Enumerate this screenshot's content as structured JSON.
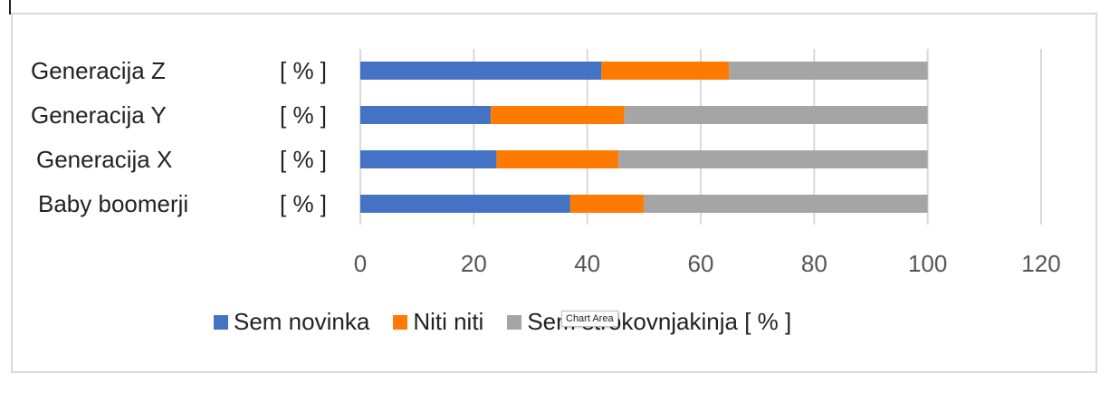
{
  "chart_data": {
    "type": "bar",
    "orientation": "horizontal",
    "stacked": true,
    "categories": [
      "Generacija Z",
      "Generacija Y",
      "Generacija X",
      "Baby boomerji"
    ],
    "unit_label": "[ % ]",
    "series": [
      {
        "name": "Sem novinka",
        "color": "#4472C4",
        "values": [
          42.5,
          23,
          24,
          37
        ]
      },
      {
        "name": "Niti niti",
        "color": "#FF7A00",
        "values": [
          22.5,
          23.5,
          21.5,
          13
        ]
      },
      {
        "name": "Sem strokovnjakinja  [ % ]",
        "color": "#A5A5A5",
        "values": [
          35,
          53.5,
          54.5,
          50
        ]
      }
    ],
    "x_ticks": [
      "0",
      "20",
      "40",
      "60",
      "80",
      "100",
      "120"
    ],
    "xlim": [
      0,
      120
    ],
    "grid": true,
    "legend_position": "bottom"
  },
  "tooltip": "Chart Area"
}
